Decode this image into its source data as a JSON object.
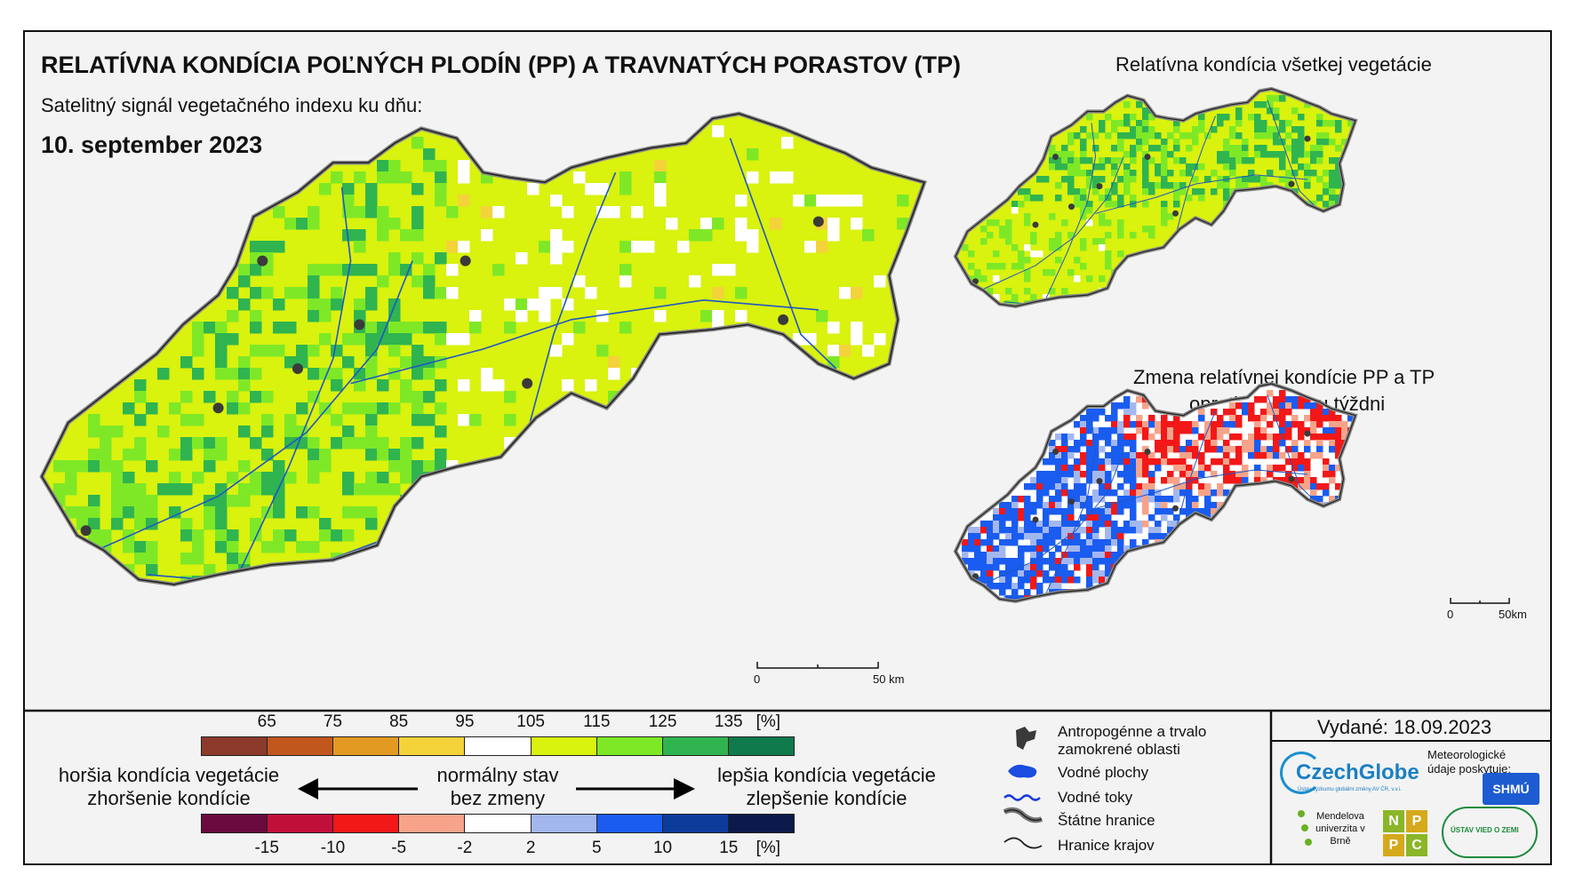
{
  "header": {
    "title": "RELATÍVNA KONDÍCIA POĽNÝCH PLODÍN (PP) A TRAVNATÝCH PORASTOV (TP)",
    "subtitle": "Satelitný signál vegetačného indexu ku dňu:",
    "date": "10. september 2023"
  },
  "side_maps": {
    "top_title": "Relatívna kondícia všetkej vegetácie",
    "bottom_title_line1": "Zmena relatívnej kondície PP a TP",
    "bottom_title_line2": "oproti minulému týždni"
  },
  "scale_main": {
    "zero": "0",
    "label": "50 km"
  },
  "scale_side": {
    "zero": "0",
    "label": "50km"
  },
  "legend": {
    "top_ticks": [
      "65",
      "75",
      "85",
      "95",
      "105",
      "115",
      "125",
      "135",
      "[%]"
    ],
    "top_colors": [
      "#8b3a2b",
      "#c2571e",
      "#e39a22",
      "#f4d23a",
      "#ffffff",
      "#d9f20e",
      "#7ee827",
      "#2fb450",
      "#0f7a4c"
    ],
    "bottom_ticks": [
      "-15",
      "-10",
      "-5",
      "-2",
      "2",
      "5",
      "10",
      "15",
      "[%]"
    ],
    "bottom_colors": [
      "#6a0a3e",
      "#c0103a",
      "#f21818",
      "#f6a38a",
      "#ffffff",
      "#a3b7ef",
      "#1a5cf0",
      "#0d3b9c",
      "#0b1a4a"
    ],
    "left_line1": "horšia kondícia vegetácie",
    "left_line2": "zhoršenie kondície",
    "center_line1": "normálny stav",
    "center_line2": "bez zmeny",
    "right_line1": "lepšia kondícia vegetácie",
    "right_line2": "zlepšenie kondície"
  },
  "map_legend": {
    "items": [
      {
        "label": "Antropogénne a trvalo zamokrené oblasti",
        "icon": "urban-area-icon"
      },
      {
        "label": "Vodné plochy",
        "icon": "water-body-icon"
      },
      {
        "label": "Vodné toky",
        "icon": "river-icon"
      },
      {
        "label": "Štátne hranice",
        "icon": "state-border-icon"
      },
      {
        "label": "Hranice krajov",
        "icon": "region-border-icon"
      }
    ]
  },
  "issued": {
    "text": "Vydané: 18.09.2023"
  },
  "logos": {
    "czechglobe": "CzechGlobe",
    "czechglobe_sub": "Ústav výzkumu globální změny AV ČR, v.v.i.",
    "meteo": "Meteorologické údaje poskytuje:",
    "shmu": "SHMÚ",
    "mendel": "Mendelova univerzita v Brně",
    "nppc": [
      "N",
      "P",
      "P",
      "C"
    ],
    "uvz": "ÚSTAV VIED O ZEMI"
  },
  "colors": {
    "frame_bg": "#f3f3f3",
    "river": "#1f56c4",
    "urban": "#3a3a3a"
  }
}
